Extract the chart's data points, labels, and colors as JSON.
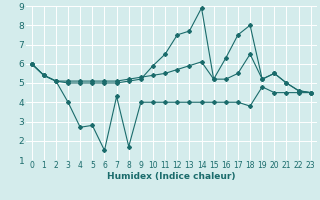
{
  "xlabel": "Humidex (Indice chaleur)",
  "bg_color": "#d4ecec",
  "grid_color": "#ffffff",
  "line_color": "#1a6b6b",
  "xlim": [
    -0.5,
    23.5
  ],
  "ylim": [
    1,
    9
  ],
  "xticks": [
    0,
    1,
    2,
    3,
    4,
    5,
    6,
    7,
    8,
    9,
    10,
    11,
    12,
    13,
    14,
    15,
    16,
    17,
    18,
    19,
    20,
    21,
    22,
    23
  ],
  "yticks": [
    1,
    2,
    3,
    4,
    5,
    6,
    7,
    8,
    9
  ],
  "line1_x": [
    0,
    1,
    2,
    3,
    4,
    5,
    6,
    7,
    8,
    9,
    10,
    11,
    12,
    13,
    14,
    15,
    16,
    17,
    18,
    19,
    20,
    21,
    22,
    23
  ],
  "line1_y": [
    6.0,
    5.4,
    5.1,
    4.0,
    2.7,
    2.8,
    1.5,
    4.3,
    1.7,
    4.0,
    4.0,
    4.0,
    4.0,
    4.0,
    4.0,
    4.0,
    4.0,
    4.0,
    3.8,
    4.8,
    4.5,
    4.5,
    4.5,
    4.5
  ],
  "line2_x": [
    0,
    1,
    2,
    3,
    4,
    5,
    6,
    7,
    8,
    9,
    10,
    11,
    12,
    13,
    14,
    15,
    16,
    17,
    18,
    19,
    20,
    21,
    22,
    23
  ],
  "line2_y": [
    6.0,
    5.4,
    5.1,
    5.1,
    5.1,
    5.1,
    5.1,
    5.1,
    5.2,
    5.3,
    5.4,
    5.5,
    5.7,
    5.9,
    6.1,
    5.2,
    5.2,
    5.5,
    6.5,
    5.2,
    5.5,
    5.0,
    4.6,
    4.5
  ],
  "line3_x": [
    0,
    1,
    2,
    3,
    4,
    5,
    6,
    7,
    8,
    9,
    10,
    11,
    12,
    13,
    14,
    15,
    16,
    17,
    18,
    19,
    20,
    21,
    22,
    23
  ],
  "line3_y": [
    6.0,
    5.4,
    5.1,
    5.0,
    5.0,
    5.0,
    5.0,
    5.0,
    5.1,
    5.2,
    5.9,
    6.5,
    7.5,
    7.7,
    8.9,
    5.2,
    6.3,
    7.5,
    8.0,
    5.2,
    5.5,
    5.0,
    4.6,
    4.5
  ]
}
